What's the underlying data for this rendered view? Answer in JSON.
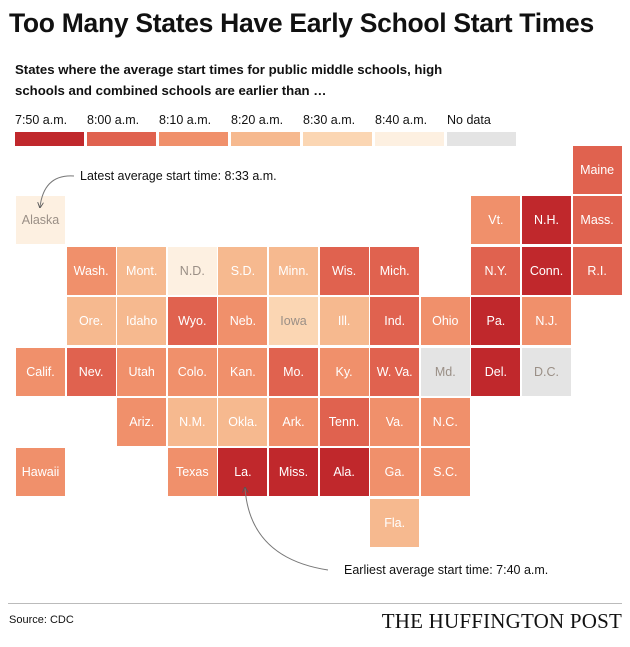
{
  "title": "Too Many States Have Early School Start Times",
  "subtitle": "States where the average start times for public middle schools, high schools and combined schools are earlier than …",
  "legend": [
    {
      "label": "7:50 a.m.",
      "color": "#c0282c"
    },
    {
      "label": "8:00 a.m.",
      "color": "#e0624f"
    },
    {
      "label": "8:10 a.m.",
      "color": "#f0906b"
    },
    {
      "label": "8:20 a.m.",
      "color": "#f6b98f"
    },
    {
      "label": "8:30 a.m.",
      "color": "#fbd6b3"
    },
    {
      "label": "8:40 a.m.",
      "color": "#fdf0e1"
    },
    {
      "label": "No data",
      "color": "#e4e4e4"
    }
  ],
  "chart_data": {
    "type": "heatmap",
    "title": "Too Many States Have Early School Start Times",
    "states": [
      {
        "label": "Maine",
        "col": 11,
        "row": 0,
        "category": "8:00 a.m."
      },
      {
        "label": "Alaska",
        "col": 0,
        "row": 1,
        "category": "8:40 a.m."
      },
      {
        "label": "Vt.",
        "col": 9,
        "row": 1,
        "category": "8:10 a.m."
      },
      {
        "label": "N.H.",
        "col": 10,
        "row": 1,
        "category": "7:50 a.m."
      },
      {
        "label": "Mass.",
        "col": 11,
        "row": 1,
        "category": "8:00 a.m."
      },
      {
        "label": "Wash.",
        "col": 1,
        "row": 2,
        "category": "8:10 a.m."
      },
      {
        "label": "Mont.",
        "col": 2,
        "row": 2,
        "category": "8:20 a.m."
      },
      {
        "label": "N.D.",
        "col": 3,
        "row": 2,
        "category": "8:40 a.m."
      },
      {
        "label": "S.D.",
        "col": 4,
        "row": 2,
        "category": "8:20 a.m."
      },
      {
        "label": "Minn.",
        "col": 5,
        "row": 2,
        "category": "8:20 a.m."
      },
      {
        "label": "Wis.",
        "col": 6,
        "row": 2,
        "category": "8:00 a.m."
      },
      {
        "label": "Mich.",
        "col": 7,
        "row": 2,
        "category": "8:00 a.m."
      },
      {
        "label": "N.Y.",
        "col": 9,
        "row": 2,
        "category": "8:00 a.m."
      },
      {
        "label": "Conn.",
        "col": 10,
        "row": 2,
        "category": "7:50 a.m."
      },
      {
        "label": "R.I.",
        "col": 11,
        "row": 2,
        "category": "8:00 a.m."
      },
      {
        "label": "Ore.",
        "col": 1,
        "row": 3,
        "category": "8:20 a.m."
      },
      {
        "label": "Idaho",
        "col": 2,
        "row": 3,
        "category": "8:20 a.m."
      },
      {
        "label": "Wyo.",
        "col": 3,
        "row": 3,
        "category": "8:00 a.m."
      },
      {
        "label": "Neb.",
        "col": 4,
        "row": 3,
        "category": "8:10 a.m."
      },
      {
        "label": "Iowa",
        "col": 5,
        "row": 3,
        "category": "8:30 a.m."
      },
      {
        "label": "Ill.",
        "col": 6,
        "row": 3,
        "category": "8:20 a.m."
      },
      {
        "label": "Ind.",
        "col": 7,
        "row": 3,
        "category": "8:00 a.m."
      },
      {
        "label": "Ohio",
        "col": 8,
        "row": 3,
        "category": "8:10 a.m."
      },
      {
        "label": "Pa.",
        "col": 9,
        "row": 3,
        "category": "7:50 a.m."
      },
      {
        "label": "N.J.",
        "col": 10,
        "row": 3,
        "category": "8:10 a.m."
      },
      {
        "label": "Calif.",
        "col": 0,
        "row": 4,
        "category": "8:10 a.m."
      },
      {
        "label": "Nev.",
        "col": 1,
        "row": 4,
        "category": "8:00 a.m."
      },
      {
        "label": "Utah",
        "col": 2,
        "row": 4,
        "category": "8:10 a.m."
      },
      {
        "label": "Colo.",
        "col": 3,
        "row": 4,
        "category": "8:10 a.m."
      },
      {
        "label": "Kan.",
        "col": 4,
        "row": 4,
        "category": "8:10 a.m."
      },
      {
        "label": "Mo.",
        "col": 5,
        "row": 4,
        "category": "8:00 a.m."
      },
      {
        "label": "Ky.",
        "col": 6,
        "row": 4,
        "category": "8:10 a.m."
      },
      {
        "label": "W. Va.",
        "col": 7,
        "row": 4,
        "category": "8:00 a.m."
      },
      {
        "label": "Md.",
        "col": 8,
        "row": 4,
        "category": "No data"
      },
      {
        "label": "Del.",
        "col": 9,
        "row": 4,
        "category": "7:50 a.m."
      },
      {
        "label": "D.C.",
        "col": 10,
        "row": 4,
        "category": "No data"
      },
      {
        "label": "Ariz.",
        "col": 2,
        "row": 5,
        "category": "8:10 a.m."
      },
      {
        "label": "N.M.",
        "col": 3,
        "row": 5,
        "category": "8:20 a.m."
      },
      {
        "label": "Okla.",
        "col": 4,
        "row": 5,
        "category": "8:20 a.m."
      },
      {
        "label": "Ark.",
        "col": 5,
        "row": 5,
        "category": "8:10 a.m."
      },
      {
        "label": "Tenn.",
        "col": 6,
        "row": 5,
        "category": "8:00 a.m."
      },
      {
        "label": "Va.",
        "col": 7,
        "row": 5,
        "category": "8:10 a.m."
      },
      {
        "label": "N.C.",
        "col": 8,
        "row": 5,
        "category": "8:10 a.m."
      },
      {
        "label": "Hawaii",
        "col": 0,
        "row": 6,
        "category": "8:10 a.m."
      },
      {
        "label": "Texas",
        "col": 3,
        "row": 6,
        "category": "8:10 a.m."
      },
      {
        "label": "La.",
        "col": 4,
        "row": 6,
        "category": "7:50 a.m."
      },
      {
        "label": "Miss.",
        "col": 5,
        "row": 6,
        "category": "7:50 a.m."
      },
      {
        "label": "Ala.",
        "col": 6,
        "row": 6,
        "category": "7:50 a.m."
      },
      {
        "label": "Ga.",
        "col": 7,
        "row": 6,
        "category": "8:10 a.m."
      },
      {
        "label": "S.C.",
        "col": 8,
        "row": 6,
        "category": "8:10 a.m."
      },
      {
        "label": "Fla.",
        "col": 7,
        "row": 7,
        "category": "8:20 a.m."
      }
    ]
  },
  "annotations": {
    "latest": "Latest average start time: 8:33 a.m.",
    "earliest": "Earliest average start time: 7:40 a.m."
  },
  "footer": {
    "source": "Source: CDC",
    "brand": "THE HUFFINGTON POST"
  }
}
